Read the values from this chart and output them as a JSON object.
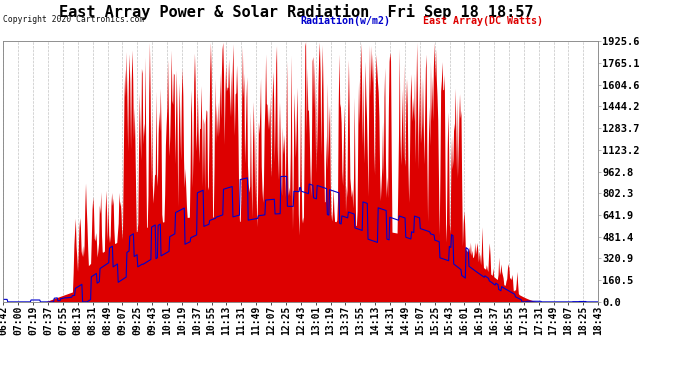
{
  "title": "East Array Power & Solar Radiation  Fri Sep 18 18:57",
  "copyright": "Copyright 2020 Cartronics.com",
  "legend_blue": "Radiation(w/m2)",
  "legend_red": "East Array(DC Watts)",
  "yticks": [
    0.0,
    160.5,
    320.9,
    481.4,
    641.9,
    802.3,
    962.8,
    1123.2,
    1283.7,
    1444.2,
    1604.6,
    1765.1,
    1925.6
  ],
  "ymax": 1925.6,
  "ymin": 0.0,
  "bg_color": "#ffffff",
  "plot_bg": "#ffffff",
  "grid_color": "#aaaaaa",
  "red_color": "#dd0000",
  "blue_color": "#0000cc",
  "title_fontsize": 11,
  "label_fontsize": 7,
  "xtick_labels": [
    "06:42",
    "07:00",
    "07:19",
    "07:37",
    "07:55",
    "08:13",
    "08:31",
    "08:49",
    "09:07",
    "09:25",
    "09:43",
    "10:01",
    "10:19",
    "10:37",
    "10:55",
    "11:13",
    "11:31",
    "11:49",
    "12:07",
    "12:25",
    "12:43",
    "13:01",
    "13:19",
    "13:37",
    "13:55",
    "14:13",
    "14:31",
    "14:49",
    "15:07",
    "15:25",
    "15:43",
    "16:01",
    "16:19",
    "16:37",
    "16:55",
    "17:13",
    "17:31",
    "17:49",
    "18:07",
    "18:25",
    "18:43"
  ]
}
